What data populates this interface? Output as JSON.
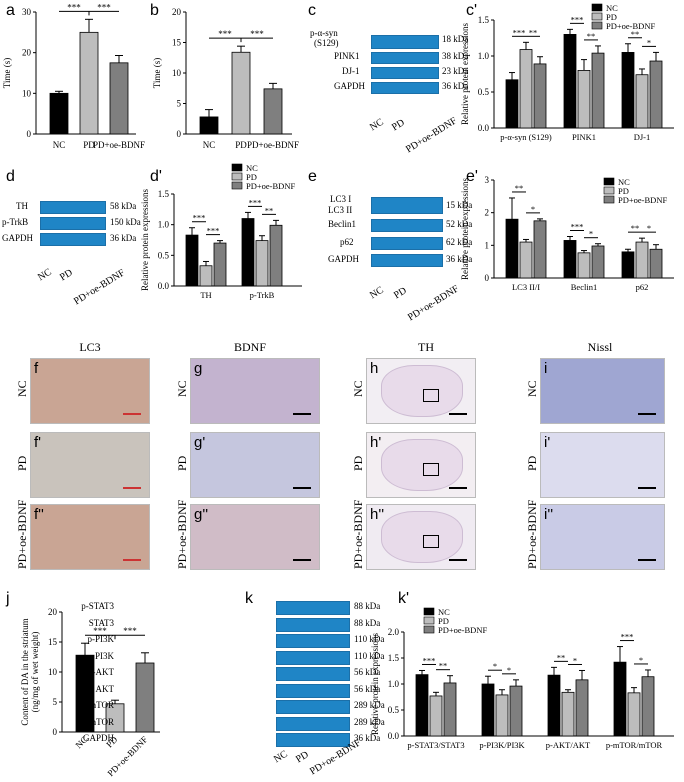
{
  "panel_labels": [
    "a",
    "b",
    "c",
    "c'",
    "d",
    "d'",
    "e",
    "e'",
    "f",
    "f'",
    "f''",
    "g",
    "g'",
    "g''",
    "h",
    "h'",
    "h''",
    "i",
    "i'",
    "i''",
    "j",
    "k",
    "k'"
  ],
  "groups": [
    "NC",
    "PD",
    "PD+oe-BDNF"
  ],
  "colors": {
    "NC": "#000000",
    "PD": "#bdbdbd",
    "PD+oe-BDNF": "#7f7f7f",
    "blot": "#1f85c6"
  },
  "sig": {
    "three": "***",
    "two": "**",
    "one": "*"
  },
  "blots": {
    "c": {
      "rows": [
        {
          "name": "p-α-syn",
          "name2": "(S129)",
          "kda": "18 kDa"
        },
        {
          "name": "PINK1",
          "kda": "38 kDa"
        },
        {
          "name": "DJ-1",
          "kda": "23 kDa"
        },
        {
          "name": "GAPDH",
          "kda": "36 kDa"
        }
      ]
    },
    "d": {
      "rows": [
        {
          "name": "TH",
          "kda": "58 kDa"
        },
        {
          "name": "p-TrkB",
          "kda": "150 kDa"
        },
        {
          "name": "GAPDH",
          "kda": "36 kDa"
        }
      ]
    },
    "e": {
      "rows": [
        {
          "name": "LC3 I",
          "name2": "LC3 II",
          "kda": "15 kDa"
        },
        {
          "name": "Beclin1",
          "kda": "52 kDa"
        },
        {
          "name": "p62",
          "kda": "62 kDa"
        },
        {
          "name": "GAPDH",
          "kda": "36 kDa"
        }
      ]
    },
    "k": {
      "rows": [
        {
          "name": "p-STAT3",
          "kda": "88 kDa"
        },
        {
          "name": "STAT3",
          "kda": "88 kDa"
        },
        {
          "name": "p-PI3K",
          "kda": "110 kDa"
        },
        {
          "name": "PI3K",
          "kda": "110 kDa"
        },
        {
          "name": "p-AKT",
          "kda": "56 kDa"
        },
        {
          "name": "AKT",
          "kda": "56 kDa"
        },
        {
          "name": "p-mTOR",
          "kda": "289 kDa"
        },
        {
          "name": "mTOR",
          "kda": "289 kDa"
        },
        {
          "name": "GAPDH",
          "kda": "36 kDa"
        }
      ]
    }
  },
  "histology": {
    "columns": [
      "LC3",
      "BDNF",
      "TH",
      "Nissl"
    ],
    "rows": [
      "NC",
      "PD",
      "PD+oe-BDNF"
    ],
    "labels": [
      [
        "f",
        "f'",
        "f''"
      ],
      [
        "g",
        "g'",
        "g''"
      ],
      [
        "h",
        "h'",
        "h''"
      ],
      [
        "i",
        "i'",
        "i''"
      ]
    ]
  },
  "chart_data": [
    {
      "id": "a",
      "type": "bar",
      "categories": [
        "NC",
        "PD",
        "PD+oe-BDNF"
      ],
      "values": [
        10,
        25,
        17.5
      ],
      "errors": [
        0.5,
        3.2,
        1.8
      ],
      "ylabel": "Time (s)",
      "ylim": [
        0,
        30
      ],
      "yticks": [
        0,
        10,
        20,
        30
      ],
      "sig": [
        [
          "NC",
          "PD",
          "***"
        ],
        [
          "PD",
          "PD+oe-BDNF",
          "***"
        ]
      ]
    },
    {
      "id": "b",
      "type": "bar",
      "categories": [
        "NC",
        "PD",
        "PD+oe-BDNF"
      ],
      "values": [
        2.8,
        13.4,
        7.4
      ],
      "errors": [
        1.2,
        1.0,
        0.9
      ],
      "ylabel": "Time (s)",
      "ylim": [
        0,
        20
      ],
      "yticks": [
        0,
        5,
        10,
        15,
        20
      ],
      "sig": [
        [
          "NC",
          "PD",
          "***"
        ],
        [
          "PD",
          "PD+oe-BDNF",
          "***"
        ]
      ]
    },
    {
      "id": "c'",
      "type": "bar",
      "categories": [
        "p-α-syn (S129)",
        "PINK1",
        "DJ-1"
      ],
      "series": [
        {
          "name": "NC",
          "values": [
            0.67,
            1.3,
            1.05
          ],
          "errors": [
            0.1,
            0.07,
            0.12
          ]
        },
        {
          "name": "PD",
          "values": [
            1.09,
            0.8,
            0.74
          ],
          "errors": [
            0.1,
            0.15,
            0.08
          ]
        },
        {
          "name": "PD+oe-BDNF",
          "values": [
            0.89,
            1.04,
            0.93
          ],
          "errors": [
            0.1,
            0.1,
            0.12
          ]
        }
      ],
      "ylabel": "Relative protein expressions",
      "ylim": [
        0,
        1.5
      ],
      "yticks": [
        0.0,
        0.5,
        1.0,
        1.5
      ],
      "legend": "top-right",
      "sig": [
        [
          "p-α-syn (S129)",
          "NC-PD",
          "***"
        ],
        [
          "p-α-syn (S129)",
          "PD-oe",
          "**"
        ],
        [
          "PINK1",
          "NC-PD",
          "***"
        ],
        [
          "PINK1",
          "PD-oe",
          "**"
        ],
        [
          "DJ-1",
          "NC-PD",
          "**"
        ],
        [
          "DJ-1",
          "PD-oe",
          "*"
        ]
      ]
    },
    {
      "id": "d'",
      "type": "bar",
      "categories": [
        "TH",
        "p-TrkB"
      ],
      "series": [
        {
          "name": "NC",
          "values": [
            0.83,
            1.1
          ],
          "errors": [
            0.12,
            0.1
          ]
        },
        {
          "name": "PD",
          "values": [
            0.33,
            0.74
          ],
          "errors": [
            0.07,
            0.08
          ]
        },
        {
          "name": "PD+oe-BDNF",
          "values": [
            0.7,
            0.99
          ],
          "errors": [
            0.04,
            0.08
          ]
        }
      ],
      "ylabel": "Relative protein expressions",
      "ylim": [
        0,
        1.5
      ],
      "yticks": [
        0.0,
        0.5,
        1.0,
        1.5
      ],
      "legend": "top-right",
      "sig": [
        [
          "TH",
          "NC-PD",
          "***"
        ],
        [
          "TH",
          "PD-oe",
          "***"
        ],
        [
          "p-TrkB",
          "NC-PD",
          "***"
        ],
        [
          "p-TrkB",
          "PD-oe",
          "**"
        ]
      ]
    },
    {
      "id": "e'",
      "type": "bar",
      "categories": [
        "LC3 II/I",
        "Beclin1",
        "p62"
      ],
      "series": [
        {
          "name": "NC",
          "values": [
            1.8,
            1.15,
            0.8
          ],
          "errors": [
            0.65,
            0.12,
            0.08
          ]
        },
        {
          "name": "PD",
          "values": [
            1.1,
            0.77,
            1.1
          ],
          "errors": [
            0.08,
            0.07,
            0.12
          ]
        },
        {
          "name": "PD+oe-BDNF",
          "values": [
            1.75,
            0.98,
            0.88
          ],
          "errors": [
            0.06,
            0.07,
            0.14
          ]
        }
      ],
      "ylabel": "Relative protein expressions",
      "ylim": [
        0,
        3
      ],
      "yticks": [
        0,
        1,
        2,
        3
      ],
      "legend": "top-right",
      "sig": [
        [
          "LC3 II/I",
          "NC-PD",
          "**"
        ],
        [
          "LC3 II/I",
          "PD-oe",
          "*"
        ],
        [
          "Beclin1",
          "NC-PD",
          "***"
        ],
        [
          "Beclin1",
          "PD-oe",
          "*"
        ],
        [
          "p62",
          "NC-PD",
          "**"
        ],
        [
          "p62",
          "PD-oe",
          "*"
        ]
      ]
    },
    {
      "id": "j",
      "type": "bar",
      "categories": [
        "NC",
        "PD",
        "PD+oe-BDNF"
      ],
      "values": [
        12.8,
        4.7,
        11.5
      ],
      "errors": [
        2.0,
        0.6,
        1.7
      ],
      "ylabel": "Content of DA in the striatum (ng/mg of wet weight)",
      "ylim": [
        0,
        20
      ],
      "yticks": [
        0,
        5,
        10,
        15,
        20
      ],
      "sig": [
        [
          "NC",
          "PD",
          "***"
        ],
        [
          "PD",
          "PD+oe-BDNF",
          "***"
        ]
      ]
    },
    {
      "id": "k'",
      "type": "bar",
      "categories": [
        "p-STAT3/STAT3",
        "p-PI3K/PI3K",
        "p-AKT/AKT",
        "p-mTOR/mTOR"
      ],
      "series": [
        {
          "name": "NC",
          "values": [
            1.18,
            1.0,
            1.17,
            1.42
          ],
          "errors": [
            0.08,
            0.15,
            0.15,
            0.3
          ]
        },
        {
          "name": "PD",
          "values": [
            0.77,
            0.79,
            0.84,
            0.83
          ],
          "errors": [
            0.07,
            0.1,
            0.05,
            0.1
          ]
        },
        {
          "name": "PD+oe-BDNF",
          "values": [
            1.02,
            0.96,
            1.08,
            1.14
          ],
          "errors": [
            0.14,
            0.12,
            0.18,
            0.13
          ]
        }
      ],
      "ylabel": "Relative protein expressions",
      "ylim": [
        0,
        2
      ],
      "yticks": [
        0.0,
        0.5,
        1.0,
        1.5,
        2.0
      ],
      "legend": "top-left",
      "sig": [
        [
          "p-STAT3/STAT3",
          "NC-PD",
          "***"
        ],
        [
          "p-STAT3/STAT3",
          "PD-oe",
          "**"
        ],
        [
          "p-PI3K/PI3K",
          "NC-PD",
          "*"
        ],
        [
          "p-PI3K/PI3K",
          "PD-oe",
          "*"
        ],
        [
          "p-AKT/AKT",
          "NC-PD",
          "**"
        ],
        [
          "p-AKT/AKT",
          "PD-oe",
          "*"
        ],
        [
          "p-mTOR/mTOR",
          "NC-PD",
          "***"
        ],
        [
          "p-mTOR/mTOR",
          "PD-oe",
          "*"
        ]
      ]
    }
  ]
}
